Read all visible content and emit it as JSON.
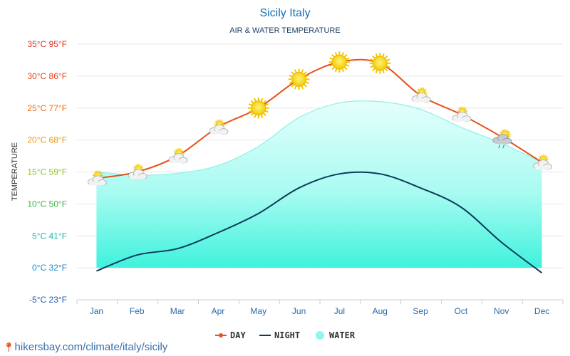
{
  "chart_data": {
    "type": "line",
    "title": "Sicily Italy",
    "subtitle": "AIR & WATER TEMPERATURE",
    "ylabel": "TEMPERATURE",
    "ylim": [
      -5,
      35
    ],
    "yticks": [
      {
        "value": 35,
        "label": "35°C 95°F",
        "color": "#e0301e"
      },
      {
        "value": 30,
        "label": "30°C 86°F",
        "color": "#e8461c"
      },
      {
        "value": 25,
        "label": "25°C 77°F",
        "color": "#ee6a12"
      },
      {
        "value": 20,
        "label": "20°C 68°F",
        "color": "#e89a0c"
      },
      {
        "value": 15,
        "label": "15°C 59°F",
        "color": "#8fc21a"
      },
      {
        "value": 10,
        "label": "10°C 50°F",
        "color": "#3bb64a"
      },
      {
        "value": 5,
        "label": "5°C 41°F",
        "color": "#1fb7b7"
      },
      {
        "value": 0,
        "label": "0°C 32°F",
        "color": "#1d8fd0"
      },
      {
        "value": -5,
        "label": "-5°C 23°F",
        "color": "#1f5fb8"
      }
    ],
    "categories": [
      "Jan",
      "Feb",
      "Mar",
      "Apr",
      "May",
      "Jun",
      "Jul",
      "Aug",
      "Sep",
      "Oct",
      "Nov",
      "Dec"
    ],
    "series": [
      {
        "name": "DAY",
        "color": "#e8501c",
        "values": [
          14,
          15,
          17.5,
          22,
          25,
          29.5,
          32.2,
          32,
          27,
          24,
          20.5,
          16.5
        ]
      },
      {
        "name": "NIGHT",
        "color": "#0e3a5a",
        "values": [
          -0.5,
          2,
          3,
          5.5,
          8.5,
          12.5,
          14.7,
          14.7,
          12.5,
          9.5,
          4,
          -0.8
        ]
      },
      {
        "name": "WATER",
        "color": "#7ff5ea",
        "values": [
          15,
          14.5,
          14.8,
          16,
          19,
          23.5,
          25.8,
          26,
          24.8,
          22,
          19.5,
          16.5
        ]
      }
    ],
    "weather_icons": [
      "partly-cloudy-icon",
      "partly-cloudy-icon",
      "partly-cloudy-icon",
      "partly-cloudy-icon",
      "sun-icon",
      "sun-icon",
      "sun-icon",
      "sun-icon",
      "partly-cloudy-icon",
      "partly-cloudy-icon",
      "rain-cloud-icon",
      "partly-cloudy-icon"
    ],
    "legend": {
      "placement": "bottom"
    }
  },
  "footer": {
    "credit": "hikersbay.com/climate/italy/sicily"
  }
}
